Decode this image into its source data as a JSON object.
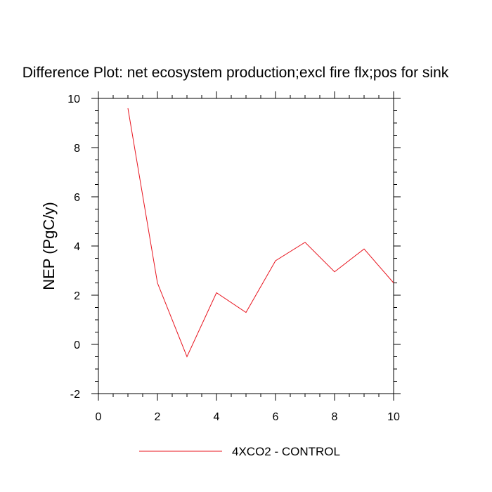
{
  "chart_data": {
    "type": "line",
    "title": "Difference Plot: net ecosystem production;excl fire flx;pos for sink",
    "xlabel": "",
    "ylabel": "NEP  (PgC/y)",
    "xlim": [
      0,
      10
    ],
    "ylim": [
      -2,
      10
    ],
    "x_ticks": [
      "0",
      "2",
      "4",
      "6",
      "8",
      "10"
    ],
    "y_ticks": [
      "-2",
      "0",
      "2",
      "4",
      "6",
      "8",
      "10"
    ],
    "grid": false,
    "legend_position": "bottom-center",
    "series": [
      {
        "name": "4XCO2 - CONTROL",
        "color": "#e8141e",
        "x": [
          1,
          2,
          3,
          4,
          5,
          6,
          7,
          8,
          9,
          10
        ],
        "y": [
          9.6,
          2.5,
          -0.5,
          2.1,
          1.3,
          3.4,
          4.15,
          2.95,
          3.88,
          2.5
        ]
      }
    ]
  }
}
